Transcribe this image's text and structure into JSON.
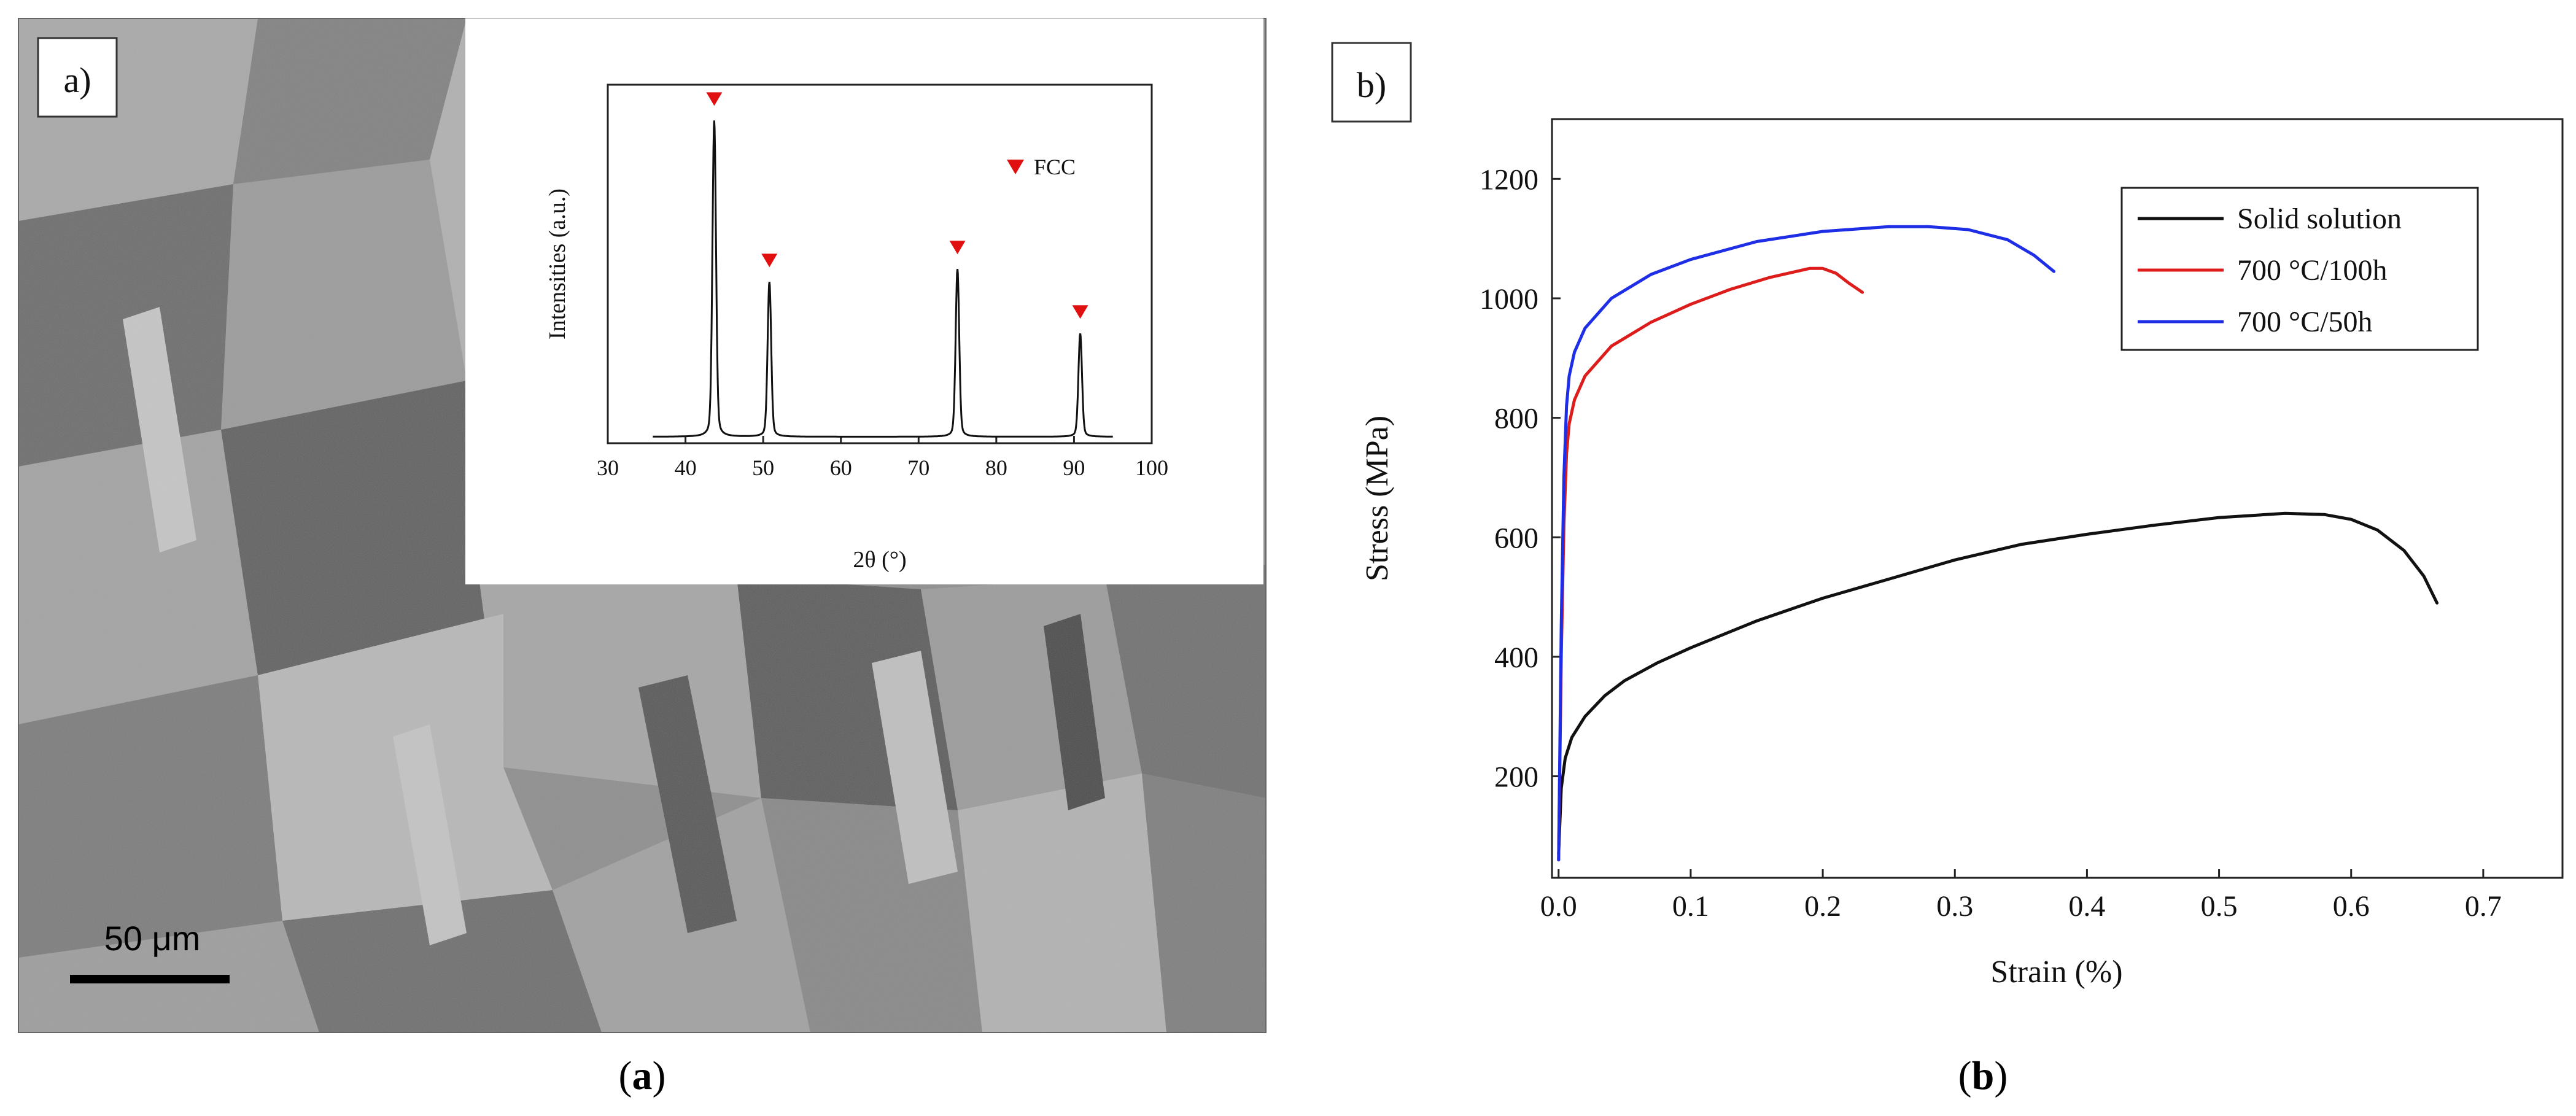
{
  "panel_a": {
    "tag": "a)",
    "caption_paren_open": "(",
    "caption_letter": "a",
    "caption_paren_close": ")",
    "scale_bar_label": "50 μm",
    "inset_chart": {
      "type": "line",
      "title": "",
      "xlabel": "2θ (°)",
      "ylabel": "Intensities (a.u.)",
      "xlim": [
        30,
        100
      ],
      "xticks": [
        30,
        40,
        50,
        60,
        70,
        80,
        90,
        100
      ],
      "ylim": [
        0,
        1
      ],
      "y_ticks_shown": false,
      "peaks": [
        {
          "x": 43.7,
          "intensity": 1.0
        },
        {
          "x": 50.8,
          "intensity": 0.5
        },
        {
          "x": 75.0,
          "intensity": 0.54
        },
        {
          "x": 90.8,
          "intensity": 0.34
        }
      ],
      "baseline_intensity": 0.02,
      "x_range_measured": [
        35.8,
        95
      ],
      "marker_peaks": [
        43.7,
        50.8,
        75.0,
        90.8
      ],
      "legend": [
        {
          "label": "FCC",
          "marker": "down-triangle",
          "color": "#e01010"
        }
      ],
      "line_color": "#111111",
      "marker_color": "#e01010"
    }
  },
  "chart_data": {
    "type": "line",
    "panel_tag": "b)",
    "title": "",
    "xlabel": "Strain (%)",
    "ylabel": "Stress (MPa)",
    "xlim": [
      -0.005,
      0.76
    ],
    "ylim": [
      30,
      1300
    ],
    "xticks": [
      0.0,
      0.1,
      0.2,
      0.3,
      0.4,
      0.5,
      0.6,
      0.7
    ],
    "xtick_labels": [
      "0.0",
      "0.1",
      "0.2",
      "0.3",
      "0.4",
      "0.5",
      "0.6",
      "0.7"
    ],
    "yticks": [
      200,
      400,
      600,
      800,
      1000,
      1200
    ],
    "ytick_labels": [
      "200",
      "400",
      "600",
      "800",
      "1000",
      "1200"
    ],
    "legend_position": "top-right",
    "grid": false,
    "series": [
      {
        "name": "Solid solution",
        "color": "#111111",
        "x": [
          0,
          0.002,
          0.005,
          0.01,
          0.02,
          0.035,
          0.05,
          0.075,
          0.1,
          0.15,
          0.2,
          0.25,
          0.3,
          0.35,
          0.4,
          0.45,
          0.5,
          0.55,
          0.58,
          0.6,
          0.62,
          0.64,
          0.655,
          0.665
        ],
        "y": [
          70,
          180,
          230,
          265,
          300,
          335,
          360,
          390,
          415,
          460,
          498,
          530,
          562,
          588,
          605,
          620,
          633,
          640,
          638,
          630,
          612,
          578,
          535,
          490
        ]
      },
      {
        "name": "700 °C/100h",
        "color": "#dd1c1c",
        "x": [
          0,
          0.002,
          0.004,
          0.006,
          0.008,
          0.012,
          0.02,
          0.04,
          0.07,
          0.1,
          0.13,
          0.16,
          0.19,
          0.2,
          0.21,
          0.22,
          0.23
        ],
        "y": [
          60,
          400,
          620,
          740,
          790,
          830,
          870,
          920,
          960,
          990,
          1015,
          1035,
          1050,
          1050,
          1042,
          1025,
          1010
        ]
      },
      {
        "name": "700 °C/50h",
        "color": "#1e2ee6",
        "x": [
          0,
          0.002,
          0.004,
          0.006,
          0.008,
          0.012,
          0.02,
          0.04,
          0.07,
          0.1,
          0.15,
          0.2,
          0.25,
          0.28,
          0.31,
          0.34,
          0.36,
          0.375
        ],
        "y": [
          60,
          450,
          700,
          820,
          870,
          910,
          950,
          1000,
          1040,
          1065,
          1095,
          1112,
          1120,
          1120,
          1115,
          1098,
          1072,
          1045
        ]
      }
    ],
    "caption_paren_open": "(",
    "caption_letter": "b",
    "caption_paren_close": ")"
  }
}
